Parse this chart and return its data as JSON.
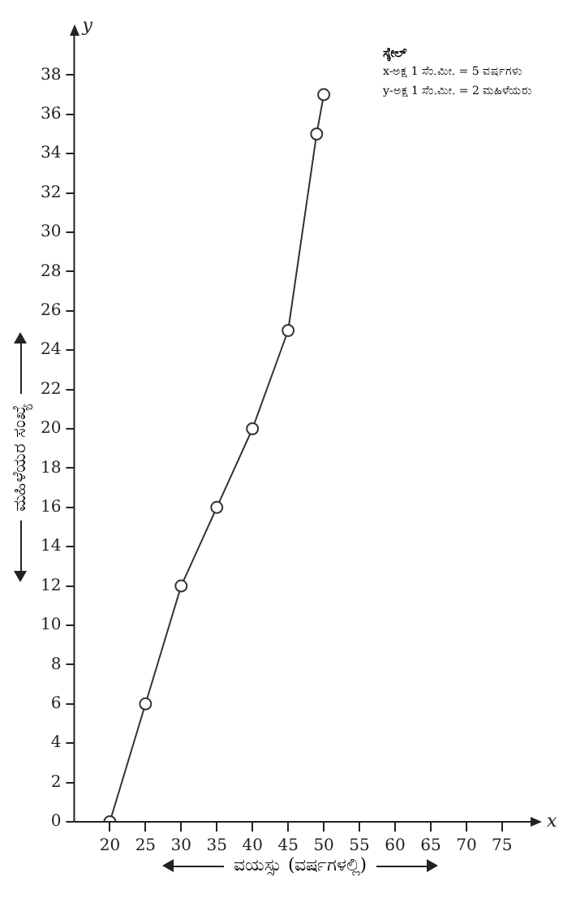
{
  "chart_data": {
    "type": "line",
    "xlabel": "ವಯಸ್ಸು (ವರ್ಷಗಳಲ್ಲಿ)",
    "ylabel": "ಮಹಿಳೆಯರ ಸಂಖ್ಯೆ",
    "x": [
      20,
      25,
      30,
      35,
      40,
      45,
      49,
      50
    ],
    "series": [
      {
        "color": "#333333",
        "values": [
          0,
          6,
          12,
          16,
          20,
          25,
          35,
          37
        ]
      }
    ],
    "xlim": [
      15,
      79
    ],
    "xticks": [
      20,
      25,
      30,
      35,
      40,
      45,
      50,
      55,
      60,
      65,
      70,
      75
    ],
    "ylim": [
      0,
      40
    ],
    "yticks": [
      0,
      2,
      4,
      6,
      8,
      10,
      12,
      14,
      16,
      18,
      20,
      22,
      24,
      26,
      28,
      30,
      32,
      34,
      36,
      38
    ],
    "marker": "circle",
    "line_style": "solid",
    "grid": false,
    "legend": false,
    "annotations": [
      "x",
      "y",
      "ಸ್ಕೇಲ್",
      "x-ಅಕ್ಷ  1 ಸೆಂ.ಮೀ. = 5 ವರ್ಷಗಳು",
      "y-ಅಕ್ಷ  1 ಸೆಂ.ಮೀ. = 2 ಮಹಿಳೆಯರು"
    ]
  }
}
